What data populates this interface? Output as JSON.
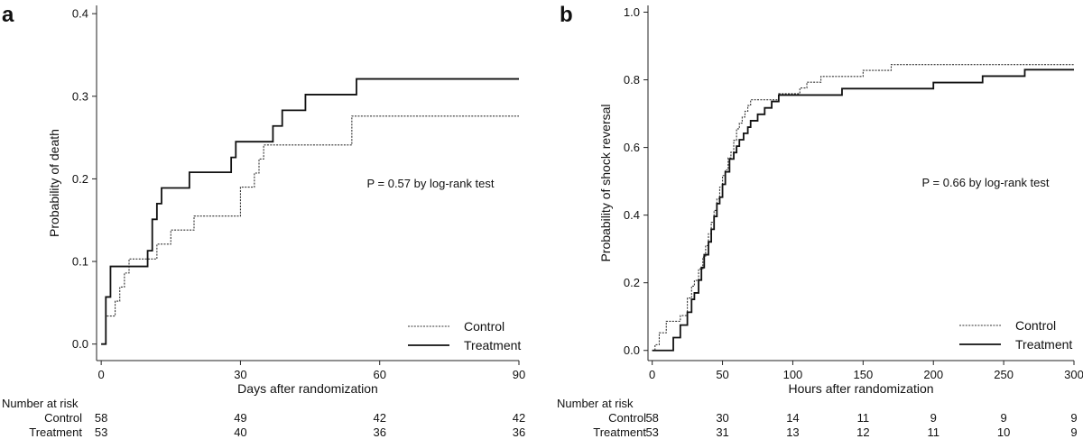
{
  "chart_data": [
    {
      "type": "line",
      "panel_label": "a",
      "title": "",
      "xlabel": "Days after randomization",
      "ylabel": "Probability of death",
      "xlim": [
        -1,
        90
      ],
      "ylim": [
        -0.02,
        0.41
      ],
      "xticks": [
        0,
        30,
        60,
        90
      ],
      "xtick_labels": [
        "0",
        "30",
        "60",
        "90"
      ],
      "yticks": [
        0,
        0.1,
        0.2,
        0.3,
        0.4
      ],
      "ytick_labels": [
        "0.0",
        "0.1",
        "0.2",
        "0.3",
        "0.4"
      ],
      "annotation": "P = 0.57 by log-rank test",
      "legend": {
        "placement": "bottom-right",
        "entries": [
          "Control",
          "Treatment"
        ]
      },
      "series": [
        {
          "name": "Control",
          "style": "dotted",
          "x": [
            0,
            1,
            2,
            3,
            4,
            5,
            6,
            8,
            10,
            12,
            13,
            15,
            17,
            20,
            30,
            32,
            33,
            34,
            35,
            36,
            37,
            54,
            90
          ],
          "y": [
            0,
            0.034,
            0.034,
            0.052,
            0.069,
            0.086,
            0.103,
            0.103,
            0.103,
            0.121,
            0.121,
            0.138,
            0.138,
            0.155,
            0.19,
            0.19,
            0.207,
            0.224,
            0.241,
            0.241,
            0.241,
            0.276,
            0.276
          ]
        },
        {
          "name": "Treatment",
          "style": "solid",
          "x": [
            0,
            1,
            2,
            10,
            11,
            12,
            13,
            19,
            28,
            29,
            30,
            37,
            38,
            39,
            41,
            44,
            49,
            55,
            90
          ],
          "y": [
            0,
            0.057,
            0.094,
            0.113,
            0.151,
            0.17,
            0.189,
            0.208,
            0.226,
            0.245,
            0.245,
            0.264,
            0.264,
            0.283,
            0.283,
            0.302,
            0.302,
            0.321,
            0.321
          ]
        }
      ],
      "risk_table": {
        "heading": "Number at risk",
        "times": [
          0,
          30,
          60,
          90
        ],
        "rows": [
          {
            "label": "Control",
            "values": [
              "58",
              "49",
              "42",
              "42"
            ]
          },
          {
            "label": "Treatment",
            "values": [
              "53",
              "40",
              "36",
              "36"
            ]
          }
        ]
      }
    },
    {
      "type": "line",
      "panel_label": "b",
      "title": "",
      "xlabel": "Hours after randomization",
      "ylabel": "Probability of shock reversal",
      "xlim": [
        -3,
        300
      ],
      "ylim": [
        -0.03,
        1.02
      ],
      "xticks": [
        0,
        50,
        100,
        150,
        200,
        250,
        300
      ],
      "xtick_labels": [
        "0",
        "50",
        "100",
        "150",
        "200",
        "250",
        "300"
      ],
      "yticks": [
        0,
        0.2,
        0.4,
        0.6,
        0.8,
        1.0
      ],
      "ytick_labels": [
        "0.0",
        "0.2",
        "0.4",
        "0.6",
        "0.8",
        "1.0"
      ],
      "annotation": "P = 0.66 by log-rank test",
      "legend": {
        "placement": "bottom-right",
        "entries": [
          "Control",
          "Treatment"
        ]
      },
      "series": [
        {
          "name": "Control",
          "style": "dotted",
          "x": [
            0,
            2,
            5,
            10,
            15,
            20,
            25,
            28,
            30,
            33,
            36,
            38,
            40,
            42,
            44,
            46,
            48,
            50,
            52,
            54,
            56,
            58,
            60,
            62,
            64,
            66,
            68,
            70,
            75,
            80,
            85,
            90,
            100,
            105,
            110,
            120,
            150,
            170,
            300
          ],
          "y": [
            0,
            0.017,
            0.052,
            0.086,
            0.086,
            0.103,
            0.155,
            0.19,
            0.207,
            0.241,
            0.276,
            0.31,
            0.345,
            0.379,
            0.414,
            0.448,
            0.483,
            0.517,
            0.534,
            0.569,
            0.586,
            0.621,
            0.655,
            0.672,
            0.69,
            0.707,
            0.724,
            0.741,
            0.741,
            0.741,
            0.741,
            0.759,
            0.759,
            0.776,
            0.793,
            0.81,
            0.828,
            0.845,
            0.845
          ]
        },
        {
          "name": "Treatment",
          "style": "solid",
          "x": [
            0,
            5,
            15,
            20,
            25,
            28,
            30,
            33,
            35,
            37,
            40,
            42,
            44,
            46,
            48,
            50,
            52,
            55,
            58,
            60,
            62,
            65,
            68,
            70,
            75,
            80,
            85,
            90,
            100,
            130,
            135,
            160,
            200,
            230,
            235,
            265,
            300
          ],
          "y": [
            0,
            0,
            0.038,
            0.075,
            0.113,
            0.151,
            0.17,
            0.208,
            0.245,
            0.283,
            0.321,
            0.358,
            0.396,
            0.434,
            0.453,
            0.491,
            0.528,
            0.566,
            0.585,
            0.604,
            0.623,
            0.642,
            0.66,
            0.679,
            0.698,
            0.717,
            0.736,
            0.755,
            0.755,
            0.755,
            0.774,
            0.774,
            0.792,
            0.792,
            0.811,
            0.83,
            0.83
          ]
        }
      ],
      "risk_table": {
        "heading": "Number at risk",
        "times": [
          0,
          50,
          100,
          150,
          200,
          250,
          300
        ],
        "rows": [
          {
            "label": "Control",
            "values": [
              "58",
              "30",
              "14",
              "11",
              "9",
              "9",
              "9"
            ]
          },
          {
            "label": "Treatment",
            "values": [
              "53",
              "31",
              "13",
              "12",
              "11",
              "10",
              "9"
            ]
          }
        ]
      }
    }
  ]
}
